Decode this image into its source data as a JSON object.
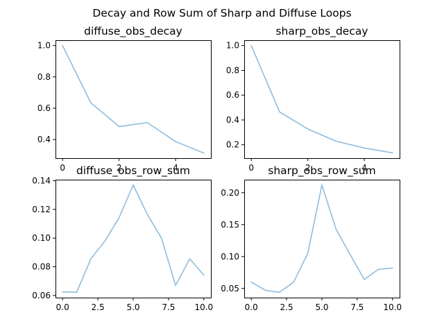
{
  "figure": {
    "title": "Decay and Row Sum of Sharp and Diffuse Loops",
    "line_color": "#8fbcdc"
  },
  "chart_data": [
    {
      "type": "line",
      "title": "diffuse_obs_decay",
      "x": [
        0,
        1,
        2,
        3,
        4,
        5
      ],
      "y": [
        1.0,
        0.635,
        0.483,
        0.508,
        0.387,
        0.314
      ],
      "xlim": [
        -0.25,
        5.25
      ],
      "ylim": [
        0.281,
        1.034
      ],
      "xticks": [
        0,
        2,
        4
      ],
      "xtick_labels": [
        "0",
        "2",
        "4"
      ],
      "yticks": [
        0.4,
        0.6,
        0.8,
        1.0
      ],
      "ytick_labels": [
        "0.4",
        "0.6",
        "0.8",
        "1.0"
      ]
    },
    {
      "type": "line",
      "title": "sharp_obs_decay",
      "x": [
        0,
        1,
        2,
        3,
        4,
        5
      ],
      "y": [
        1.0,
        0.466,
        0.327,
        0.229,
        0.174,
        0.135
      ],
      "xlim": [
        -0.25,
        5.25
      ],
      "ylim": [
        0.092,
        1.043
      ],
      "xticks": [
        0,
        2,
        4
      ],
      "xtick_labels": [
        "0",
        "2",
        "4"
      ],
      "yticks": [
        0.2,
        0.4,
        0.6,
        0.8,
        1.0
      ],
      "ytick_labels": [
        "0.2",
        "0.4",
        "0.6",
        "0.8",
        "1.0"
      ]
    },
    {
      "type": "line",
      "title": "diffuse_obs_row_sum",
      "x": [
        0,
        1,
        2,
        3,
        4,
        5,
        6,
        7,
        8,
        9,
        10
      ],
      "y": [
        0.0625,
        0.0622,
        0.0855,
        0.098,
        0.1142,
        0.137,
        0.1165,
        0.1,
        0.067,
        0.0855,
        0.0742
      ],
      "xlim": [
        -0.5,
        10.5
      ],
      "ylim": [
        0.0585,
        0.1407
      ],
      "xticks": [
        0,
        2.5,
        5,
        7.5,
        10
      ],
      "xtick_labels": [
        "0.0",
        "2.5",
        "5.0",
        "7.5",
        "10.0"
      ],
      "yticks": [
        0.06,
        0.08,
        0.1,
        0.12,
        0.14
      ],
      "ytick_labels": [
        "0.06",
        "0.08",
        "0.10",
        "0.12",
        "0.14"
      ]
    },
    {
      "type": "line",
      "title": "sharp_obs_row_sum",
      "x": [
        0,
        1,
        2,
        3,
        4,
        5,
        6,
        7,
        8,
        9,
        10
      ],
      "y": [
        0.06,
        0.047,
        0.044,
        0.06,
        0.105,
        0.212,
        0.143,
        0.103,
        0.064,
        0.08,
        0.082
      ],
      "xlim": [
        -0.5,
        10.5
      ],
      "ylim": [
        0.0356,
        0.2204
      ],
      "xticks": [
        0,
        2.5,
        5,
        7.5,
        10
      ],
      "xtick_labels": [
        "0.0",
        "2.5",
        "5.0",
        "7.5",
        "10.0"
      ],
      "yticks": [
        0.05,
        0.1,
        0.15,
        0.2
      ],
      "ytick_labels": [
        "0.05",
        "0.10",
        "0.15",
        "0.20"
      ]
    }
  ]
}
